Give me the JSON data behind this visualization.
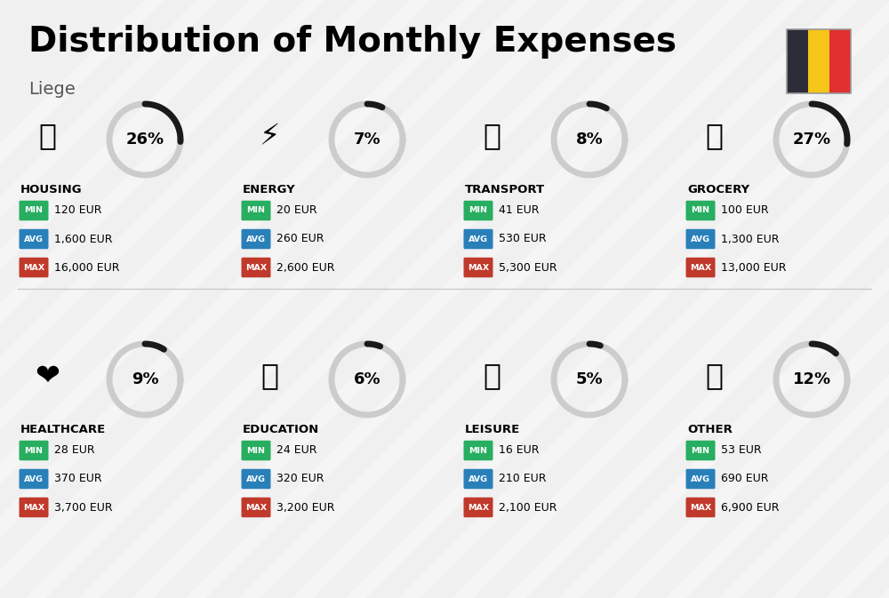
{
  "title": "Distribution of Monthly Expenses",
  "subtitle": "Liege",
  "background_color": "#f0f0f0",
  "categories": [
    {
      "name": "HOUSING",
      "pct": 26,
      "min_val": "120 EUR",
      "avg_val": "1,600 EUR",
      "max_val": "16,000 EUR",
      "row": 0,
      "col": 0
    },
    {
      "name": "ENERGY",
      "pct": 7,
      "min_val": "20 EUR",
      "avg_val": "260 EUR",
      "max_val": "2,600 EUR",
      "row": 0,
      "col": 1
    },
    {
      "name": "TRANSPORT",
      "pct": 8,
      "min_val": "41 EUR",
      "avg_val": "530 EUR",
      "max_val": "5,300 EUR",
      "row": 0,
      "col": 2
    },
    {
      "name": "GROCERY",
      "pct": 27,
      "min_val": "100 EUR",
      "avg_val": "1,300 EUR",
      "max_val": "13,000 EUR",
      "row": 0,
      "col": 3
    },
    {
      "name": "HEALTHCARE",
      "pct": 9,
      "min_val": "28 EUR",
      "avg_val": "370 EUR",
      "max_val": "3,700 EUR",
      "row": 1,
      "col": 0
    },
    {
      "name": "EDUCATION",
      "pct": 6,
      "min_val": "24 EUR",
      "avg_val": "320 EUR",
      "max_val": "3,200 EUR",
      "row": 1,
      "col": 1
    },
    {
      "name": "LEISURE",
      "pct": 5,
      "min_val": "16 EUR",
      "avg_val": "210 EUR",
      "max_val": "2,100 EUR",
      "row": 1,
      "col": 2
    },
    {
      "name": "OTHER",
      "pct": 12,
      "min_val": "53 EUR",
      "avg_val": "690 EUR",
      "max_val": "6,900 EUR",
      "row": 1,
      "col": 3
    }
  ],
  "color_min": "#27ae60",
  "color_avg": "#2980b9",
  "color_max": "#c0392b",
  "donut_color": "#1a1a1a",
  "donut_bg": "#cccccc",
  "flag_colors": [
    "#2d2d3a",
    "#f5c518",
    "#e03030"
  ],
  "title_fontsize": 28,
  "subtitle_fontsize": 14
}
